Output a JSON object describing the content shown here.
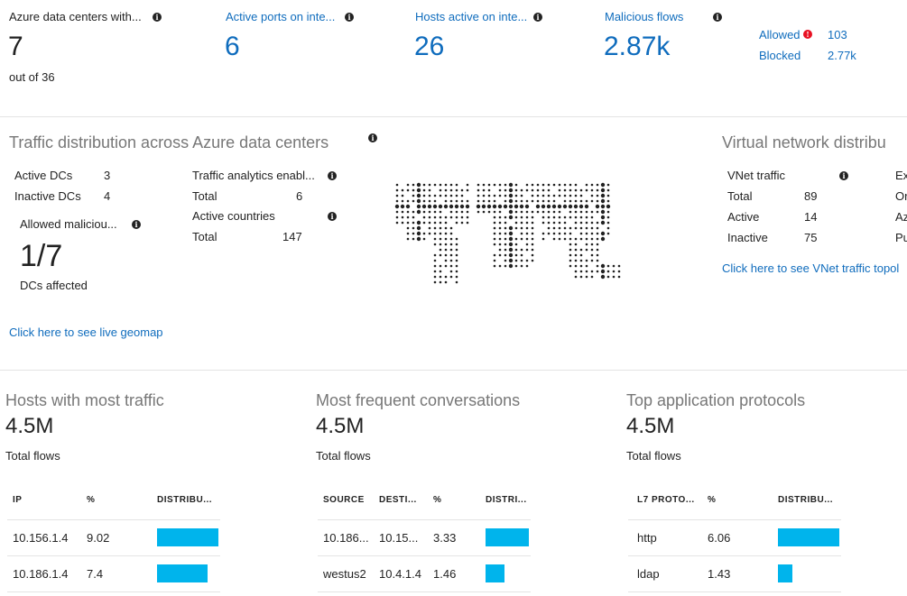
{
  "kpis": [
    {
      "label": "Azure data centers with...",
      "value": 7,
      "sub": "out of 36"
    },
    {
      "label": "Active ports on inte...",
      "value": 6
    },
    {
      "label": "Hosts active on inte...",
      "value": 26
    },
    {
      "label": "Malicious flows",
      "value": "2.87k"
    }
  ],
  "malicious_breakdown": [
    {
      "label": "Allowed",
      "value": 103
    },
    {
      "label": "Blocked",
      "value": "2.77k"
    }
  ],
  "traffic_distribution": {
    "title": "Traffic distribution across Azure data centers",
    "dc_stats": [
      {
        "label": "Active DCs",
        "value": 3
      },
      {
        "label": "Inactive DCs",
        "value": 4
      }
    ],
    "allowed_malicious": {
      "label": "Allowed maliciou...",
      "value": "1/7",
      "sub": "DCs affected"
    },
    "analytics": [
      {
        "heading": "Traffic analytics enabl...",
        "label": "Total",
        "value": 6
      },
      {
        "heading": "Active countries",
        "label": "Total",
        "value": 147
      }
    ],
    "link": "Click here to see live geomap"
  },
  "vnet": {
    "title": "Virtual network distribu",
    "heading": "VNet traffic",
    "stats": [
      {
        "label": "Total",
        "value": 89
      },
      {
        "label": "Active",
        "value": 14
      },
      {
        "label": "Inactive",
        "value": 75
      }
    ],
    "side": [
      "Ex",
      "Or",
      "Az",
      "Pu"
    ],
    "link": "Click here to see VNet traffic topol"
  },
  "panels": [
    {
      "title": "Hosts with most traffic",
      "total": "4.5M",
      "total_label": "Total flows",
      "columns": [
        "IP",
        "%",
        "DISTRIBU..."
      ],
      "rows": [
        [
          "10.156.1.4",
          9.02
        ],
        [
          "10.186.1.4",
          7.4
        ]
      ]
    },
    {
      "title": "Most frequent conversations",
      "total": "4.5M",
      "total_label": "Total flows",
      "columns": [
        "SOURCE",
        "DESTI...",
        "%",
        "DISTRI..."
      ],
      "rows": [
        [
          "10.186...",
          "10.15...",
          3.33
        ],
        [
          "westus2",
          "10.4.1.4",
          1.46
        ]
      ]
    },
    {
      "title": "Top application protocols",
      "total": "4.5M",
      "total_label": "Total flows",
      "columns": [
        "L7 PROTO...",
        "%",
        "DISTRIBU..."
      ],
      "rows": [
        [
          "http",
          6.06
        ],
        [
          "ldap",
          1.43
        ]
      ]
    }
  ]
}
